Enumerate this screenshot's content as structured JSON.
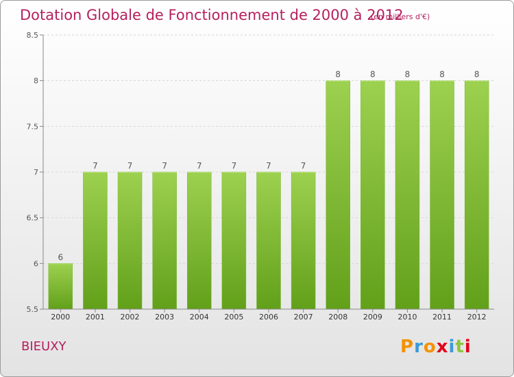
{
  "chart_data": {
    "type": "bar",
    "title": "Dotation Globale de Fonctionnement de 2000 à 2012",
    "subtitle": "(en milliers d'€)",
    "categories": [
      "2000",
      "2001",
      "2002",
      "2003",
      "2004",
      "2005",
      "2006",
      "2007",
      "2008",
      "2009",
      "2010",
      "2011",
      "2012"
    ],
    "values": [
      6,
      7,
      7,
      7,
      7,
      7,
      7,
      7,
      8,
      8,
      8,
      8,
      8
    ],
    "data_labels": [
      "6",
      "7",
      "7",
      "7",
      "7",
      "7",
      "7",
      "7",
      "8",
      "8",
      "8",
      "8",
      "8"
    ],
    "ylim": [
      5.5,
      8.5
    ],
    "yticks": [
      5.5,
      6,
      6.5,
      7,
      7.5,
      8,
      8.5
    ],
    "ytick_labels": [
      "5.5",
      "6",
      "6.5",
      "7",
      "7.5",
      "8",
      "8.5"
    ],
    "xlabel": "",
    "ylabel": "",
    "grid": true,
    "bar_color": "#8cc63f",
    "bar_color_dark": "#6aa820"
  },
  "commune": "BIEUXY",
  "logo": {
    "letters": [
      "P",
      "r",
      "o",
      "x",
      "i",
      "t",
      "i"
    ],
    "colors": [
      "#f39200",
      "#3a9ad9",
      "#f39200",
      "#e2001a",
      "#3a9ad9",
      "#8cc63f",
      "#e2001a"
    ]
  },
  "colors": {
    "accent": "#b51f5e"
  }
}
